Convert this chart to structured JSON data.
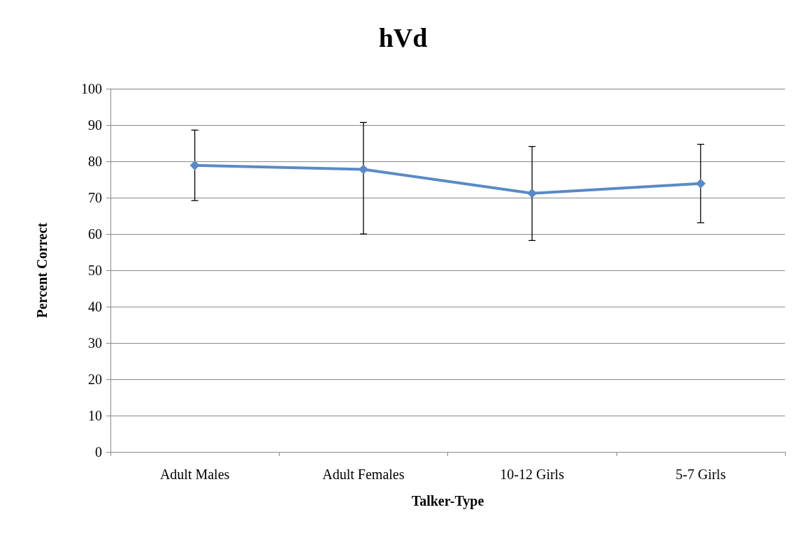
{
  "chart_data": {
    "type": "line",
    "title": "hVd",
    "xlabel": "Talker-Type",
    "ylabel": "Percent Correct",
    "categories": [
      "Adult Males",
      "Adult Females",
      "10-12 Girls",
      "5-7 Girls"
    ],
    "series": [
      {
        "color": "#5a8ac6",
        "values": [
          78.9,
          77.8,
          71.2,
          73.9
        ],
        "errors": [
          [
            69.2,
            88.6
          ],
          [
            60,
            90.7
          ],
          [
            58.2,
            84.1
          ],
          [
            63.1,
            84.7
          ]
        ]
      }
    ],
    "ylim": [
      0,
      100
    ],
    "yticks": [
      0,
      10,
      20,
      30,
      40,
      50,
      60,
      70,
      80,
      90,
      100
    ],
    "grid": "y",
    "legend": false,
    "marker": "diamond",
    "line_style": "solid"
  }
}
